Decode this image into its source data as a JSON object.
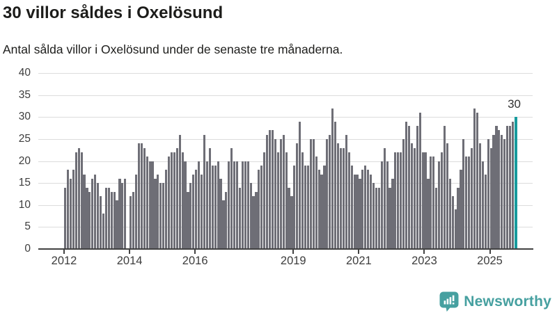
{
  "header": {
    "title": "30 villor såldes i Oxelösund",
    "subtitle": "Antal sålda villor i Oxelösund under de senaste tre månaderna."
  },
  "chart_data": {
    "type": "bar",
    "title": "Antal sålda villor i Oxelösund under de senaste tre månaderna",
    "x_interval": "month",
    "x_start": "2012-01",
    "x_end": "2025-10",
    "xlabel": "",
    "ylabel": "",
    "ylim": [
      0,
      40
    ],
    "yticks": [
      0,
      5,
      10,
      15,
      20,
      25,
      30,
      35,
      40
    ],
    "xtick_years": [
      2012,
      2014,
      2016,
      2019,
      2021,
      2023,
      2025
    ],
    "grid": true,
    "legend": "none",
    "values": [
      14,
      18,
      16,
      18,
      22,
      23,
      22,
      17,
      14,
      13,
      16,
      17,
      15,
      12,
      8,
      14,
      14,
      13,
      13,
      11,
      16,
      15,
      16,
      0,
      12,
      13,
      17,
      24,
      24,
      23,
      21,
      20,
      20,
      16,
      17,
      15,
      15,
      18,
      21,
      22,
      22,
      23,
      26,
      22,
      20,
      13,
      15,
      17,
      18,
      20,
      17,
      26,
      20,
      23,
      19,
      19,
      20,
      16,
      11,
      13,
      20,
      23,
      20,
      20,
      14,
      20,
      20,
      20,
      15,
      12,
      13,
      18,
      19,
      22,
      26,
      27,
      27,
      25,
      22,
      25,
      26,
      22,
      14,
      12,
      19,
      24,
      29,
      22,
      19,
      19,
      25,
      25,
      21,
      18,
      17,
      19,
      25,
      26,
      32,
      29,
      24,
      23,
      23,
      26,
      22,
      19,
      17,
      17,
      16,
      18,
      19,
      18,
      17,
      15,
      14,
      14,
      20,
      23,
      20,
      14,
      16,
      22,
      22,
      22,
      25,
      29,
      28,
      24,
      23,
      28,
      31,
      22,
      22,
      16,
      21,
      21,
      14,
      20,
      22,
      28,
      24,
      16,
      12,
      9,
      14,
      18,
      25,
      21,
      21,
      23,
      32,
      31,
      24,
      20,
      17,
      25,
      23,
      26,
      28,
      27,
      26,
      25,
      28,
      28,
      29,
      30
    ],
    "highlight_last": true,
    "last_value_label": "30",
    "bar_color": "#6e6e76",
    "highlight_color": "#189b9d"
  },
  "footer": {
    "brand": "Newsworthy"
  },
  "icons": {
    "logo": "newsworthy-speech-bubble-chart-icon"
  },
  "colors": {
    "accent_teal": "#189b9d",
    "bar_gray": "#6e6e76",
    "brand_teal": "#46a0a0",
    "gridline": "#dcdcdc",
    "axis": "#424242",
    "text_dark": "#1c1c1a",
    "tick_text": "#3d3d3d"
  }
}
